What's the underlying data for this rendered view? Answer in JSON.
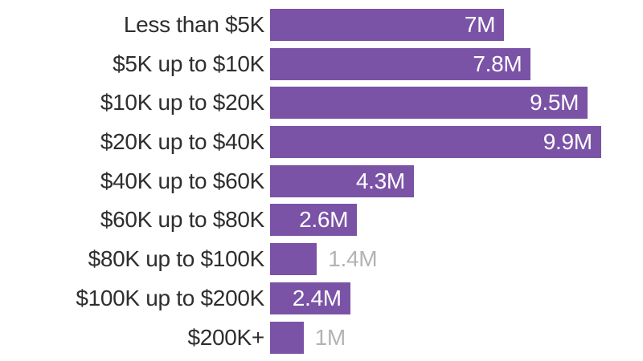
{
  "chart_data": {
    "type": "bar",
    "orientation": "horizontal",
    "title": "",
    "xlabel": "",
    "ylabel": "",
    "categories": [
      "Less than $5K",
      "$5K up to $10K",
      "$10K up to $20K",
      "$20K up to $40K",
      "$40K up to $60K",
      "$60K up to $80K",
      "$80K up to $100K",
      "$100K up to $200K",
      "$200K+"
    ],
    "values": [
      7,
      7.8,
      9.5,
      9.9,
      4.3,
      2.6,
      1.4,
      2.4,
      1
    ],
    "value_labels": [
      "7M",
      "7.8M",
      "9.5M",
      "9.9M",
      "4.3M",
      "2.6M",
      "1.4M",
      "2.4M",
      "1M"
    ],
    "value_label_positions": [
      "inside",
      "inside",
      "inside",
      "inside",
      "inside",
      "inside",
      "outside",
      "inside",
      "outside"
    ],
    "unit": "M",
    "xlim": [
      0,
      10
    ],
    "grid": false,
    "legend": false,
    "colors": {
      "bar": "#7b53a6",
      "value_inside": "#ffffff",
      "value_outside": "#b3b3b3",
      "category_label": "#2e2e2e",
      "background": "#ffffff"
    }
  }
}
